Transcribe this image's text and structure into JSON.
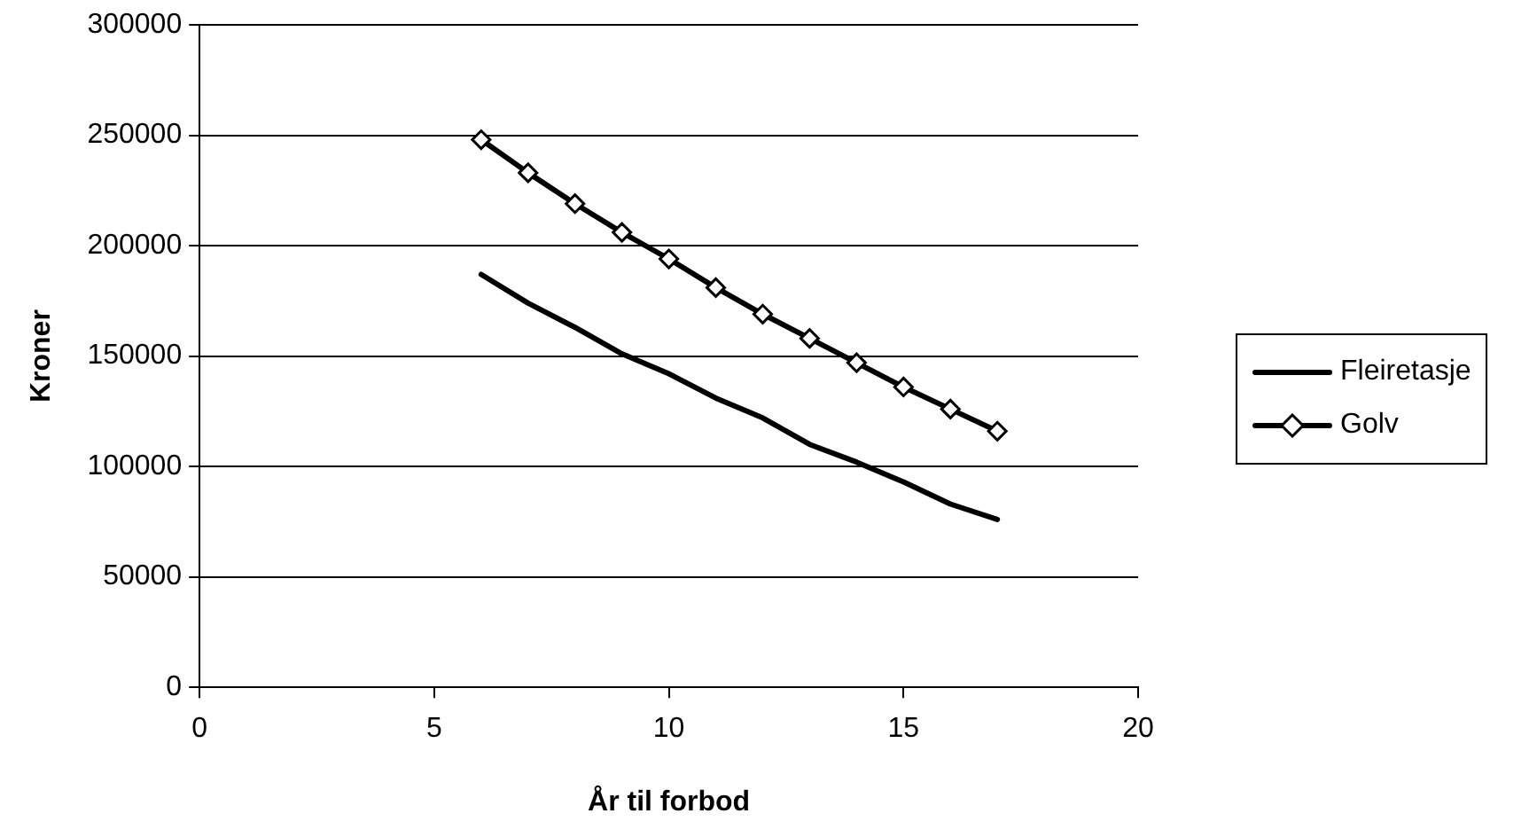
{
  "chart_data": {
    "type": "line",
    "xlabel": "År til forbod",
    "ylabel": "Kroner",
    "xlim": [
      0,
      20
    ],
    "xticks": [
      0,
      5,
      10,
      15,
      20
    ],
    "ylim": [
      0,
      300000
    ],
    "yticks": [
      0,
      50000,
      100000,
      150000,
      200000,
      250000,
      300000
    ],
    "grid": "y",
    "legend": "right",
    "line_style": "solid",
    "x": [
      6,
      7,
      8,
      9,
      10,
      11,
      12,
      13,
      14,
      15,
      16,
      17
    ],
    "series": [
      {
        "name": "Fleiretasje",
        "color": "#000000",
        "marker": "none",
        "values": [
          187000,
          174000,
          163000,
          151000,
          142000,
          131000,
          122000,
          110000,
          102000,
          93000,
          83000,
          76000
        ]
      },
      {
        "name": "Golv",
        "color": "#000000",
        "marker": "diamond",
        "values": [
          248000,
          233000,
          219000,
          206000,
          194000,
          181000,
          169000,
          158000,
          147000,
          136000,
          126000,
          116000
        ]
      }
    ]
  }
}
